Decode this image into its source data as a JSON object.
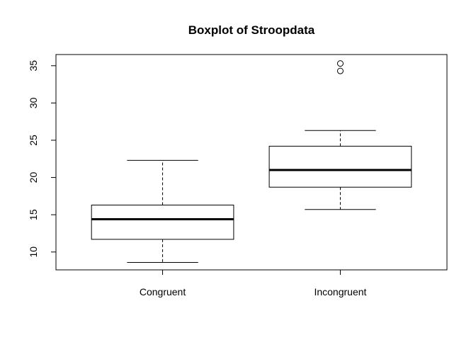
{
  "chart_data": {
    "type": "boxplot",
    "title": "Boxplot of Stroopdata",
    "xlabel": "",
    "ylabel": "",
    "ylim": [
      7.6,
      36.5
    ],
    "yticks": [
      10,
      15,
      20,
      25,
      30,
      35
    ],
    "ytick_labels": [
      "10",
      "15",
      "20",
      "25",
      "30",
      "35"
    ],
    "grid": false,
    "legend": "none",
    "categories": [
      "Congruent",
      "Incongruent"
    ],
    "boxes": [
      {
        "name": "Congruent",
        "whisker_low": 8.6,
        "q1": 11.7,
        "median": 14.4,
        "q3": 16.3,
        "whisker_high": 22.3,
        "outliers": []
      },
      {
        "name": "Incongruent",
        "whisker_low": 15.7,
        "q1": 18.7,
        "median": 21.0,
        "q3": 24.2,
        "whisker_high": 26.3,
        "outliers": [
          34.3,
          35.3
        ]
      }
    ],
    "colors": {
      "box_fill": "#ffffff",
      "line": "#000000"
    }
  }
}
